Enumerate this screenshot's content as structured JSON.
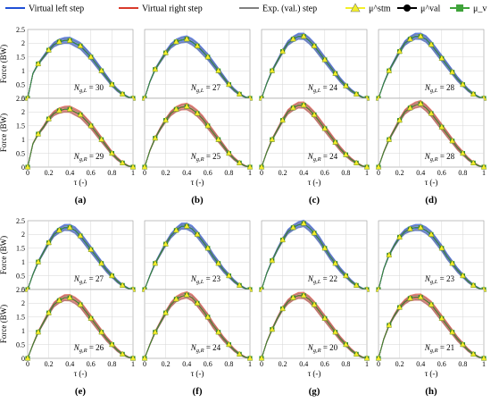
{
  "legend": [
    {
      "label": "Virtual left step",
      "kind": "line",
      "color": "#1f4fd6"
    },
    {
      "label": "Virtual right step",
      "kind": "line",
      "color": "#d93a2b"
    },
    {
      "label": "Exp. (val.) step",
      "kind": "line",
      "color": "#808080"
    },
    {
      "label": "μ^stm",
      "kind": "triangle",
      "color": "#f2ef2a"
    },
    {
      "label": "μ^val",
      "kind": "circle",
      "color": "#000000"
    },
    {
      "label": "μ_v",
      "kind": "square",
      "color": "#3fa33a"
    }
  ],
  "y_axis_label": "Force (BW)",
  "x_axis_label": "τ (-)",
  "y_ticks": [
    "0",
    "0.5",
    "1",
    "1.5",
    "2",
    "2.5"
  ],
  "x_ticks": [
    "0",
    "0.2",
    "0.4",
    "0.6",
    "0.8",
    "1"
  ],
  "colors": {
    "left": "#1f4fd6",
    "left_band": "#7f97ea",
    "right": "#d93a2b",
    "right_band": "#f0a6a0",
    "exp": "#7d7d7d",
    "stm": "#f2ef2a",
    "val": "#000000",
    "v": "#3fa33a"
  },
  "chart_data": {
    "type": "line",
    "xlabel": "τ (-)",
    "ylabel": "Force (BW)",
    "xlim": [
      0,
      1
    ],
    "ylim": [
      0,
      2.5
    ],
    "x": [
      0,
      0.05,
      0.1,
      0.15,
      0.2,
      0.25,
      0.3,
      0.35,
      0.4,
      0.45,
      0.5,
      0.55,
      0.6,
      0.65,
      0.7,
      0.75,
      0.8,
      0.85,
      0.9,
      0.95,
      1
    ],
    "panels": [
      {
        "label": "(a)",
        "top_n": "30",
        "bottom_n": "29",
        "top": [
          0,
          0.9,
          1.25,
          1.5,
          1.75,
          1.95,
          2.05,
          2.1,
          2.1,
          2.0,
          1.9,
          1.7,
          1.5,
          1.25,
          1.0,
          0.75,
          0.5,
          0.3,
          0.15,
          0.05,
          0
        ],
        "bottom": [
          0,
          0.85,
          1.2,
          1.45,
          1.75,
          1.95,
          2.05,
          2.1,
          2.1,
          2.0,
          1.9,
          1.7,
          1.5,
          1.25,
          1.0,
          0.75,
          0.5,
          0.3,
          0.15,
          0.05,
          0
        ]
      },
      {
        "label": "(b)",
        "top_n": "27",
        "bottom_n": "25",
        "top": [
          0,
          0.6,
          1.05,
          1.35,
          1.65,
          1.9,
          2.05,
          2.12,
          2.15,
          2.05,
          1.9,
          1.7,
          1.5,
          1.25,
          1.0,
          0.75,
          0.5,
          0.3,
          0.15,
          0.05,
          0
        ],
        "bottom": [
          0,
          0.6,
          1.05,
          1.4,
          1.7,
          1.95,
          2.1,
          2.18,
          2.2,
          2.1,
          1.95,
          1.75,
          1.5,
          1.25,
          1.0,
          0.75,
          0.5,
          0.3,
          0.15,
          0.05,
          0
        ]
      },
      {
        "label": "(c)",
        "top_n": "24",
        "bottom_n": "24",
        "top": [
          0,
          0.55,
          1.0,
          1.35,
          1.7,
          2.0,
          2.15,
          2.25,
          2.25,
          2.1,
          1.9,
          1.65,
          1.4,
          1.15,
          0.9,
          0.65,
          0.45,
          0.28,
          0.15,
          0.05,
          0
        ],
        "bottom": [
          0,
          0.55,
          1.0,
          1.35,
          1.7,
          2.0,
          2.15,
          2.25,
          2.25,
          2.1,
          1.9,
          1.65,
          1.4,
          1.15,
          0.9,
          0.65,
          0.45,
          0.28,
          0.15,
          0.05,
          0
        ]
      },
      {
        "label": "(d)",
        "top_n": "28",
        "bottom_n": "28",
        "top": [
          0,
          0.55,
          1.0,
          1.35,
          1.7,
          2.0,
          2.15,
          2.25,
          2.25,
          2.15,
          1.95,
          1.7,
          1.45,
          1.2,
          0.95,
          0.7,
          0.5,
          0.3,
          0.15,
          0.05,
          0
        ],
        "bottom": [
          0,
          0.55,
          1.0,
          1.35,
          1.7,
          2.0,
          2.15,
          2.25,
          2.3,
          2.15,
          1.95,
          1.7,
          1.45,
          1.2,
          0.95,
          0.7,
          0.5,
          0.3,
          0.15,
          0.05,
          0
        ]
      },
      {
        "label": "(e)",
        "top_n": "27",
        "bottom_n": "26",
        "top": [
          0,
          0.55,
          1.0,
          1.35,
          1.7,
          2.0,
          2.15,
          2.25,
          2.25,
          2.15,
          1.95,
          1.7,
          1.45,
          1.2,
          0.95,
          0.7,
          0.5,
          0.3,
          0.15,
          0.05,
          0
        ],
        "bottom": [
          0,
          0.5,
          0.95,
          1.3,
          1.65,
          1.95,
          2.1,
          2.2,
          2.2,
          2.1,
          1.95,
          1.7,
          1.45,
          1.2,
          0.95,
          0.7,
          0.5,
          0.3,
          0.15,
          0.05,
          0
        ]
      },
      {
        "label": "(f)",
        "top_n": "23",
        "bottom_n": "24",
        "top": [
          0,
          0.5,
          0.95,
          1.3,
          1.65,
          1.95,
          2.15,
          2.3,
          2.3,
          2.2,
          2.0,
          1.75,
          1.5,
          1.2,
          0.95,
          0.7,
          0.5,
          0.3,
          0.15,
          0.05,
          0
        ],
        "bottom": [
          0,
          0.5,
          0.95,
          1.3,
          1.65,
          1.95,
          2.15,
          2.25,
          2.3,
          2.2,
          2.0,
          1.75,
          1.5,
          1.2,
          0.95,
          0.7,
          0.5,
          0.3,
          0.15,
          0.05,
          0
        ]
      },
      {
        "label": "(g)",
        "top_n": "22",
        "bottom_n": "20",
        "top": [
          0,
          0.6,
          1.05,
          1.45,
          1.8,
          2.1,
          2.25,
          2.35,
          2.4,
          2.25,
          2.05,
          1.8,
          1.5,
          1.2,
          0.95,
          0.7,
          0.5,
          0.3,
          0.15,
          0.05,
          0
        ],
        "bottom": [
          0,
          0.6,
          1.05,
          1.45,
          1.8,
          2.05,
          2.2,
          2.28,
          2.28,
          2.15,
          1.95,
          1.7,
          1.45,
          1.2,
          0.95,
          0.7,
          0.5,
          0.3,
          0.15,
          0.05,
          0
        ]
      },
      {
        "label": "(h)",
        "top_n": "23",
        "bottom_n": "21",
        "top": [
          0,
          0.75,
          1.25,
          1.6,
          1.9,
          2.1,
          2.2,
          2.25,
          2.25,
          2.15,
          2.0,
          1.75,
          1.5,
          1.2,
          0.95,
          0.7,
          0.5,
          0.3,
          0.15,
          0.05,
          0
        ],
        "bottom": [
          0,
          0.7,
          1.2,
          1.55,
          1.85,
          2.05,
          2.18,
          2.22,
          2.22,
          2.1,
          1.95,
          1.7,
          1.45,
          1.2,
          0.95,
          0.7,
          0.5,
          0.3,
          0.15,
          0.05,
          0
        ]
      }
    ]
  }
}
